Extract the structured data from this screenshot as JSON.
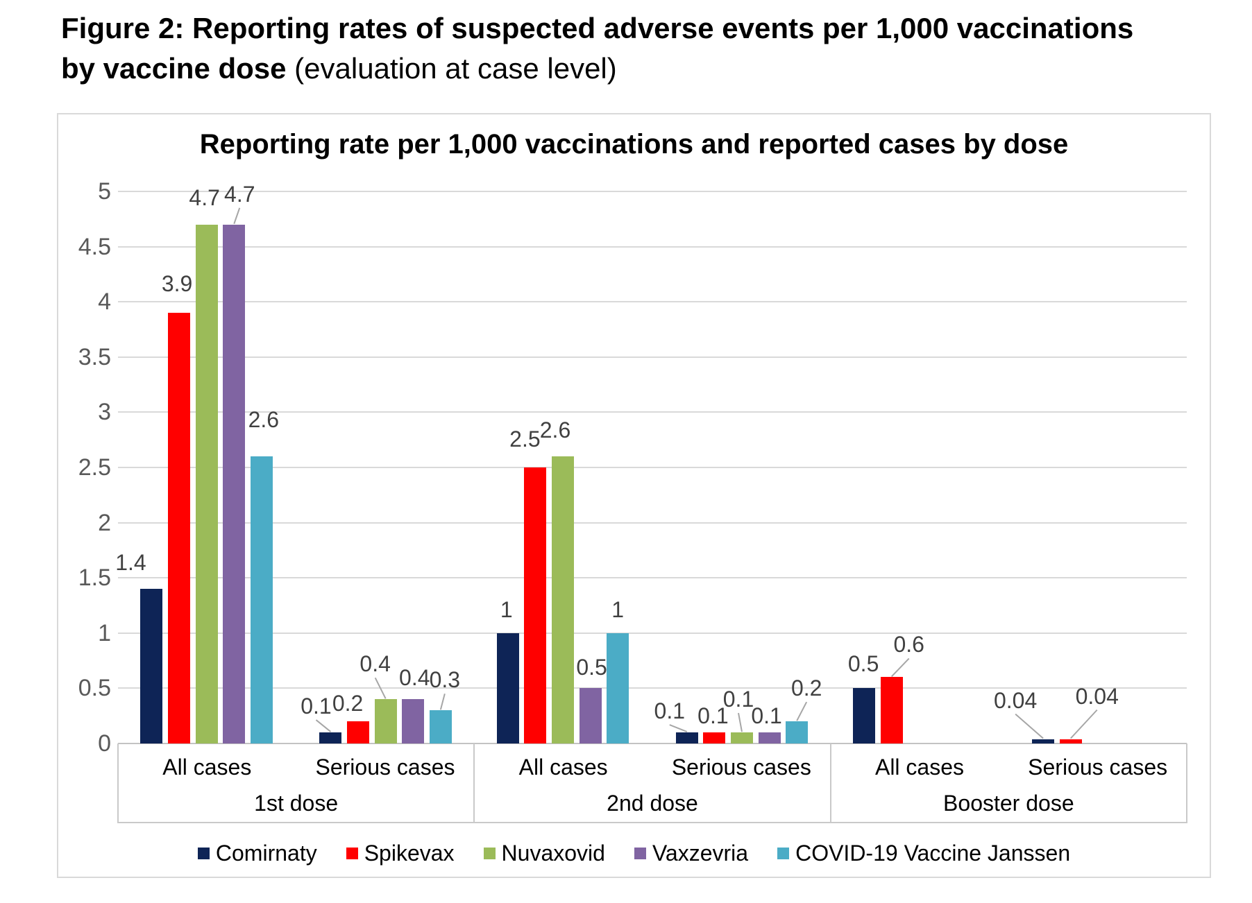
{
  "figure_title": {
    "bold_part": "Figure 2: Reporting rates of suspected adverse events per 1,000 vaccinations by vaccine dose",
    "regular_part": " (evaluation at case level)"
  },
  "chart_data": {
    "type": "bar",
    "title": "Reporting rate per 1,000 vaccinations and reported cases by dose",
    "xlabel": "",
    "ylabel": "",
    "ylim": [
      0,
      5
    ],
    "ytick_step": 0.5,
    "yticks": [
      "5",
      "4.5",
      "4",
      "3.5",
      "3",
      "2.5",
      "2",
      "1.5",
      "1",
      "0.5",
      "0"
    ],
    "grid": true,
    "legend_position": "bottom",
    "colors": {
      "comirnaty": "#0E2456",
      "spikevax": "#FF0000",
      "nuvaxovid": "#9BBB59",
      "vaxzevria": "#8064A2",
      "janssen": "#4BACC6",
      "gridline": "#D9D9D9",
      "callout_line": "#A6A6A6",
      "tick_text": "#595959",
      "data_label_text": "#404040"
    },
    "series": [
      {
        "name": "Comirnaty",
        "color": "#0E2456"
      },
      {
        "name": "Spikevax",
        "color": "#FF0000"
      },
      {
        "name": "Nuvaxovid",
        "color": "#9BBB59"
      },
      {
        "name": "Vaxzevria",
        "color": "#8064A2"
      },
      {
        "name": "COVID-19 Vaccine Janssen",
        "color": "#4BACC6"
      }
    ],
    "groups": [
      {
        "label": "1st dose",
        "clusters": [
          {
            "label": "All cases",
            "points": [
              {
                "value": 1.4,
                "label": "1.4",
                "dx": -30,
                "dy": 20,
                "callout": false
              },
              {
                "value": 3.9,
                "label": "3.9",
                "dx": -3,
                "dy": 24,
                "callout": false
              },
              {
                "value": 4.7,
                "label": "4.7",
                "dx": -3,
                "dy": 21,
                "callout": false
              },
              {
                "value": 4.7,
                "label": "4.7",
                "dx": 8,
                "dy": 26,
                "callout": true
              },
              {
                "value": 2.6,
                "label": "2.6",
                "dx": 3,
                "dy": 35,
                "callout": false
              }
            ]
          },
          {
            "label": "Serious cases",
            "points": [
              {
                "value": 0.1,
                "label": "0.1",
                "dx": -21,
                "dy": 20,
                "callout": true
              },
              {
                "value": 0.2,
                "label": "0.2",
                "dx": -15,
                "dy": 8,
                "callout": false
              },
              {
                "value": 0.4,
                "label": "0.4",
                "dx": -15,
                "dy": 33,
                "callout": true
              },
              {
                "value": 0.4,
                "label": "0.4",
                "dx": 2,
                "dy": 13,
                "callout": false
              },
              {
                "value": 0.3,
                "label": "0.3",
                "dx": 6,
                "dy": 26,
                "callout": true
              }
            ]
          }
        ]
      },
      {
        "label": "2nd dose",
        "clusters": [
          {
            "label": "All cases",
            "points": [
              {
                "value": 1,
                "label": "1",
                "dx": -2,
                "dy": 16,
                "callout": false
              },
              {
                "value": 2.5,
                "label": "2.5",
                "dx": -15,
                "dy": 23,
                "callout": false
              },
              {
                "value": 2.6,
                "label": "2.6",
                "dx": -11,
                "dy": 20,
                "callout": false
              },
              {
                "value": 0.5,
                "label": "0.5",
                "dx": 2,
                "dy": 12,
                "callout": false
              },
              {
                "value": 1,
                "label": "1",
                "dx": 0,
                "dy": 16,
                "callout": false
              }
            ]
          },
          {
            "label": "Serious cases",
            "points": [
              {
                "value": 0.1,
                "label": "0.1",
                "dx": -25,
                "dy": 13,
                "callout": true
              },
              {
                "value": 0.1,
                "label": "0.1",
                "dx": -2,
                "dy": 6,
                "callout": false
              },
              {
                "value": 0.1,
                "label": "0.1",
                "dx": -5,
                "dy": 30,
                "callout": true
              },
              {
                "value": 0.1,
                "label": "0.1",
                "dx": -4,
                "dy": 6,
                "callout": false
              },
              {
                "value": 0.2,
                "label": "0.2",
                "dx": 14,
                "dy": 30,
                "callout": true
              }
            ]
          }
        ]
      },
      {
        "label": "Booster dose",
        "clusters": [
          {
            "label": "All cases",
            "points": [
              {
                "value": 0.5,
                "label": "0.5",
                "dx": -1,
                "dy": 17,
                "callout": false
              },
              {
                "value": 0.6,
                "label": "0.6",
                "dx": 25,
                "dy": 29,
                "callout": true
              },
              null,
              null,
              null
            ]
          },
          {
            "label": "Serious cases",
            "points": [
              {
                "value": 0.04,
                "label": "0.04",
                "dx": -40,
                "dy": 38,
                "callout": true
              },
              {
                "value": 0.04,
                "label": "0.04",
                "dx": 38,
                "dy": 44,
                "callout": true
              },
              null,
              null,
              null
            ]
          }
        ]
      }
    ]
  }
}
